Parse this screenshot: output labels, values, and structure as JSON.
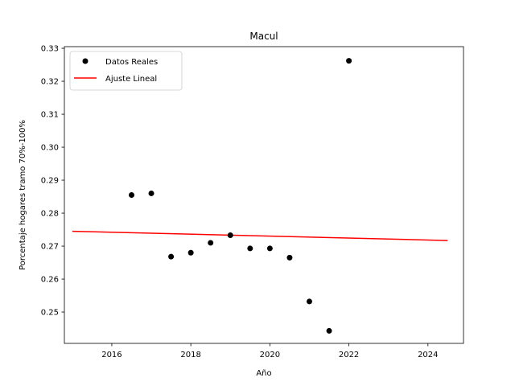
{
  "chart_data": {
    "type": "scatter",
    "title": "Macul",
    "xlabel": "Año",
    "ylabel": "Porcentaje hogares tramo 70%-100%",
    "xlim": [
      2014.8,
      2024.9
    ],
    "ylim": [
      0.2405,
      0.3305
    ],
    "xticks": [
      2016,
      2018,
      2020,
      2022,
      2024
    ],
    "yticks": [
      0.25,
      0.26,
      0.27,
      0.28,
      0.29,
      0.3,
      0.31,
      0.32,
      0.33
    ],
    "xtick_labels": [
      "2016",
      "2018",
      "2020",
      "2022",
      "2024"
    ],
    "ytick_labels": [
      "0.25",
      "0.26",
      "0.27",
      "0.28",
      "0.29",
      "0.30",
      "0.31",
      "0.32",
      "0.33"
    ],
    "legend_position": "top-left",
    "series": [
      {
        "name": "Datos Reales",
        "kind": "scatter",
        "color": "#000000",
        "x": [
          2016.5,
          2017.0,
          2017.5,
          2018.0,
          2018.5,
          2019.0,
          2019.5,
          2020.0,
          2020.5,
          2021.0,
          2021.5,
          2022.0
        ],
        "y": [
          0.2855,
          0.286,
          0.2668,
          0.268,
          0.271,
          0.2733,
          0.2693,
          0.2693,
          0.2665,
          0.2532,
          0.2443,
          0.3262
        ]
      },
      {
        "name": "Ajuste Lineal",
        "kind": "line",
        "color": "#ff0000",
        "x": [
          2015.0,
          2024.5
        ],
        "y": [
          0.2745,
          0.2717
        ]
      }
    ]
  }
}
